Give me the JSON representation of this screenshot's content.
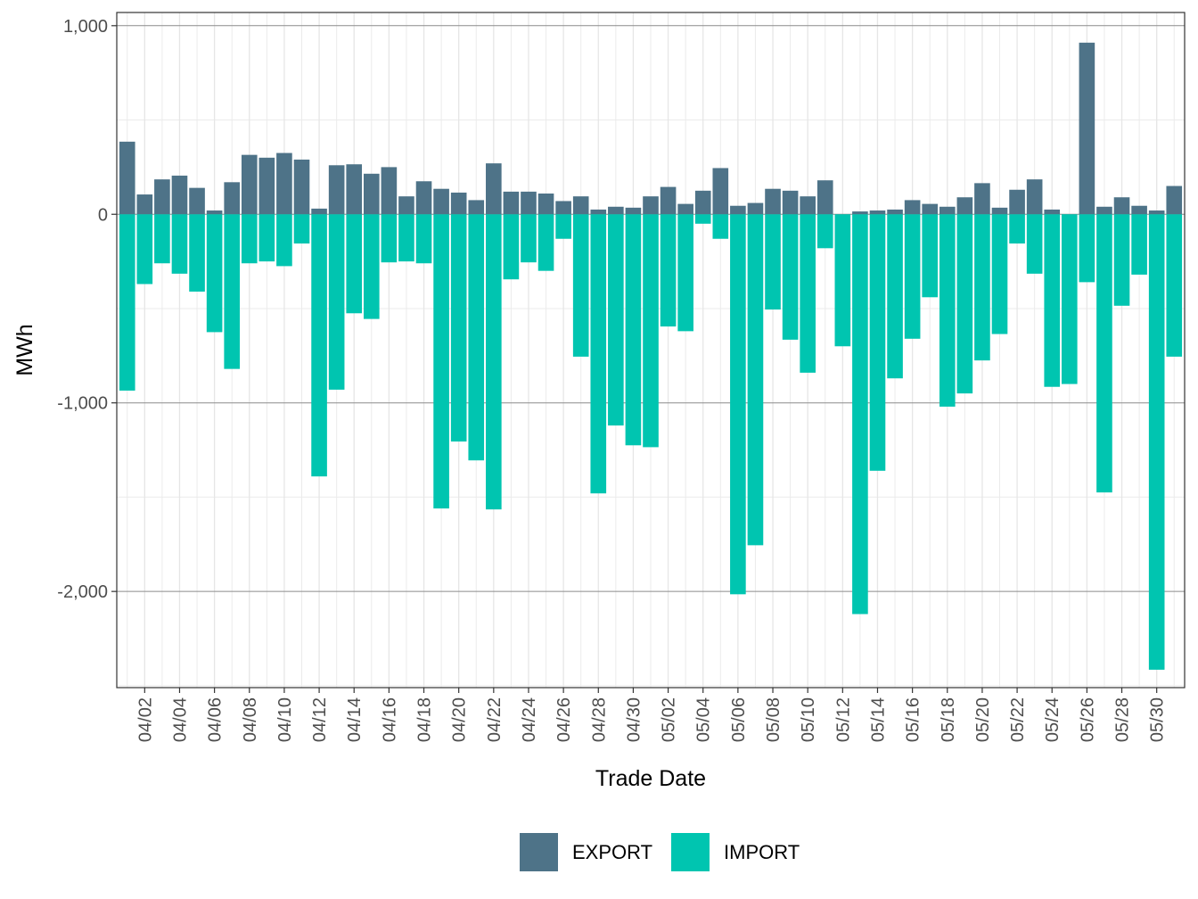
{
  "chart_data": {
    "type": "bar",
    "title": "",
    "xlabel": "Trade Date",
    "ylabel": "MWh",
    "ylim": [
      -2510,
      1070
    ],
    "yticks": [
      1000,
      0,
      -1000,
      -2000
    ],
    "ytick_labels": [
      "1,000",
      "0",
      "-1,000",
      "-2,000"
    ],
    "grid": true,
    "legend_position": "bottom",
    "dates": [
      "04/01",
      "04/02",
      "04/03",
      "04/04",
      "04/05",
      "04/06",
      "04/07",
      "04/08",
      "04/09",
      "04/10",
      "04/11",
      "04/12",
      "04/13",
      "04/14",
      "04/15",
      "04/16",
      "04/17",
      "04/18",
      "04/19",
      "04/20",
      "04/21",
      "04/22",
      "04/23",
      "04/24",
      "04/25",
      "04/26",
      "04/27",
      "04/28",
      "04/29",
      "04/30",
      "05/01",
      "05/02",
      "05/03",
      "05/04",
      "05/05",
      "05/06",
      "05/07",
      "05/08",
      "05/09",
      "05/10",
      "05/11",
      "05/12",
      "05/13",
      "05/14",
      "05/15",
      "05/16",
      "05/17",
      "05/18",
      "05/19",
      "05/20",
      "05/21",
      "05/22",
      "05/23",
      "05/24",
      "05/25",
      "05/26",
      "05/27",
      "05/28",
      "05/29",
      "05/30",
      "05/31"
    ],
    "xtick_labels": [
      "04/02",
      "04/04",
      "04/06",
      "04/08",
      "04/10",
      "04/12",
      "04/14",
      "04/16",
      "04/18",
      "04/20",
      "04/22",
      "04/24",
      "04/26",
      "04/28",
      "04/30",
      "05/02",
      "05/04",
      "05/06",
      "05/08",
      "05/10",
      "05/12",
      "05/14",
      "05/16",
      "05/18",
      "05/20",
      "05/22",
      "05/24",
      "05/26",
      "05/28",
      "05/30"
    ],
    "series": [
      {
        "name": "EXPORT",
        "color": "#4E7388",
        "values": [
          385,
          105,
          185,
          205,
          140,
          20,
          170,
          315,
          300,
          325,
          290,
          30,
          260,
          265,
          215,
          250,
          95,
          175,
          135,
          115,
          75,
          270,
          120,
          120,
          110,
          70,
          95,
          25,
          40,
          35,
          95,
          145,
          55,
          125,
          245,
          45,
          60,
          135,
          125,
          95,
          180,
          0,
          15,
          20,
          25,
          75,
          55,
          40,
          90,
          165,
          35,
          130,
          185,
          25,
          0,
          910,
          40,
          90,
          45,
          20,
          150
        ]
      },
      {
        "name": "IMPORT",
        "color": "#00C5B0",
        "values": [
          -935,
          -370,
          -260,
          -315,
          -410,
          -625,
          -820,
          -260,
          -250,
          -275,
          -155,
          -1390,
          -930,
          -525,
          -555,
          -255,
          -250,
          -260,
          -1560,
          -1205,
          -1305,
          -1565,
          -345,
          -255,
          -300,
          -130,
          -755,
          -1480,
          -1120,
          -1225,
          -1235,
          -595,
          -620,
          -50,
          -130,
          -2015,
          -1755,
          -505,
          -665,
          -840,
          -180,
          -700,
          -2120,
          -1360,
          -870,
          -660,
          -440,
          -1020,
          -950,
          -775,
          -635,
          -155,
          -315,
          -915,
          -900,
          -360,
          -1475,
          -485,
          -320,
          -2415,
          -755
        ]
      }
    ]
  }
}
